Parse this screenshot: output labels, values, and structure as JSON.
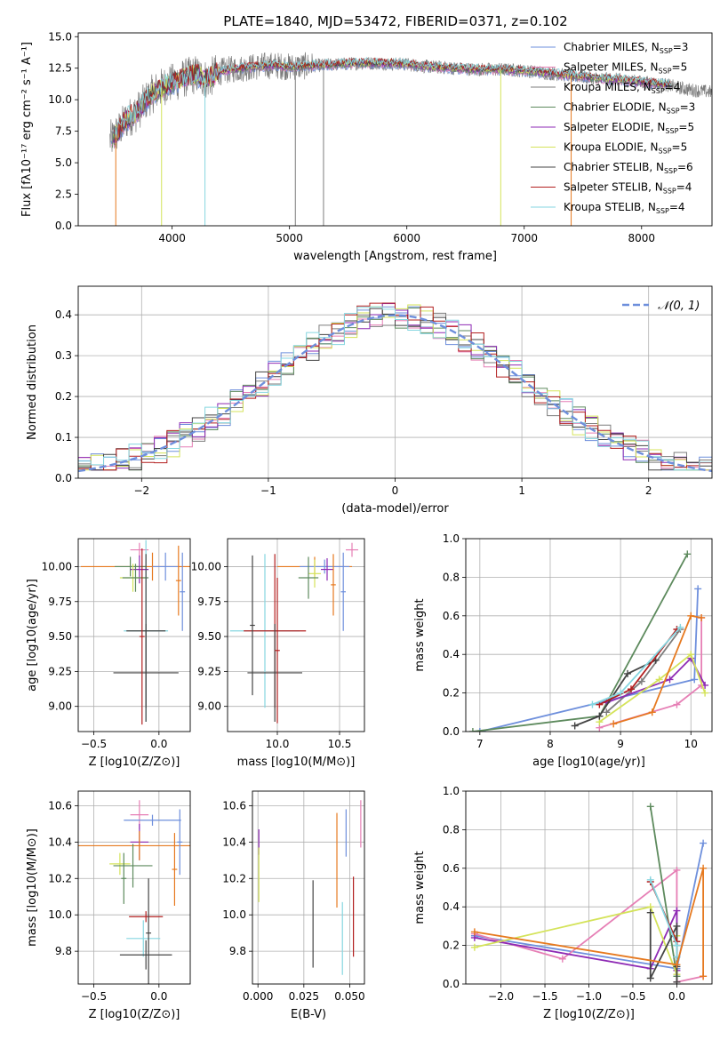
{
  "figure_title": "PLATE=1840, MJD=53472, FIBERID=0371, z=0.102",
  "legend_colors": [
    "#6e8fdc",
    "#e67fb5",
    "#7d7d7d",
    "#5d8a5d",
    "#8e2ab4",
    "#d4e35a",
    "#444444",
    "#b21f1f",
    "#86d6e0"
  ],
  "chart_data": [
    {
      "id": "spectrum",
      "type": "line",
      "title": "PLATE=1840, MJD=53472, FIBERID=0371, z=0.102",
      "xlabel": "wavelength [Angstrom, rest frame]",
      "ylabel": "Flux [fλ10⁻¹⁷ erg cm⁻² s⁻¹ A⁻¹]",
      "xlim": [
        3200,
        8600
      ],
      "ylim": [
        0,
        15.3
      ],
      "xticks": [
        4000,
        5000,
        6000,
        7000,
        8000
      ],
      "yticks": [
        0.0,
        2.5,
        5.0,
        7.5,
        10.0,
        12.5,
        15.0
      ],
      "grid": false,
      "legend_position": "top-right",
      "data_series": {
        "name": "data",
        "color": "#7d7d7d",
        "x": [
          3470,
          3500,
          3550,
          3600,
          3650,
          3700,
          3750,
          3800,
          3850,
          3900,
          3950,
          4000,
          4100,
          4200,
          4300,
          4400,
          4500,
          4600,
          4700,
          4800,
          4900,
          5000,
          5200,
          5400,
          5600,
          5800,
          6000,
          6200,
          6400,
          6600,
          6800,
          7000,
          7200,
          7400,
          7600,
          7800,
          8000,
          8200,
          8400,
          8600
        ],
        "y": [
          6.8,
          7.0,
          7.6,
          8.3,
          8.7,
          9.0,
          9.6,
          10.2,
          10.6,
          10.9,
          11.2,
          11.3,
          11.7,
          12.0,
          11.6,
          12.2,
          12.4,
          12.5,
          12.6,
          12.7,
          12.7,
          12.6,
          12.7,
          12.8,
          12.9,
          12.9,
          12.8,
          12.6,
          12.5,
          12.4,
          12.4,
          12.3,
          12.1,
          11.9,
          11.7,
          11.6,
          11.4,
          11.2,
          10.8,
          10.6
        ]
      },
      "series": [
        {
          "name": "Chabrier MILES, N_SSP=3",
          "label": "Chabrier MILES, N",
          "sub": "SSP",
          "suffix": "=3",
          "color": "#6e8fdc"
        },
        {
          "name": "Salpeter MILES, N_SSP=5",
          "label": "Salpeter MILES, N",
          "sub": "SSP",
          "suffix": "=5",
          "color": "#e67fb5"
        },
        {
          "name": "Kroupa MILES, N_SSP=4",
          "label": "Kroupa MILES, N",
          "sub": "SSP",
          "suffix": "=4",
          "color": "#7d7d7d"
        },
        {
          "name": "Chabrier ELODIE, N_SSP=3",
          "label": "Chabrier ELODIE, N",
          "sub": "SSP",
          "suffix": "=3",
          "color": "#5d8a5d"
        },
        {
          "name": "Salpeter ELODIE, N_SSP=5",
          "label": "Salpeter ELODIE, N",
          "sub": "SSP",
          "suffix": "=5",
          "color": "#8e2ab4"
        },
        {
          "name": "Kroupa ELODIE, N_SSP=5",
          "label": "Kroupa ELODIE, N",
          "sub": "SSP",
          "suffix": "=5",
          "color": "#d4e35a"
        },
        {
          "name": "Chabrier STELIB, N_SSP=6",
          "label": "Chabrier STELIB, N",
          "sub": "SSP",
          "suffix": "=6",
          "color": "#444444"
        },
        {
          "name": "Salpeter STELIB, N_SSP=4",
          "label": "Salpeter STELIB, N",
          "sub": "SSP",
          "suffix": "=4",
          "color": "#b21f1f"
        },
        {
          "name": "Kroupa STELIB, N_SSP=4",
          "label": "Kroupa STELIB, N",
          "sub": "SSP",
          "suffix": "=4",
          "color": "#86d6e0"
        }
      ]
    },
    {
      "id": "residuals",
      "type": "histogram",
      "xlabel": "(data-model)/error",
      "ylabel": "Normed distribution",
      "xlim": [
        -2.5,
        2.5
      ],
      "ylim": [
        0,
        0.47
      ],
      "xticks": [
        -2,
        -1,
        0,
        1,
        2
      ],
      "yticks": [
        0.0,
        0.1,
        0.2,
        0.3,
        0.4
      ],
      "grid": true,
      "legend_position": "top-right",
      "normal_curve": {
        "name": "𝒩(0, 1)",
        "color": "#6e8fdc",
        "style": "dashed"
      },
      "bin_edges_range": [
        -2.5,
        2.5
      ],
      "bin_count": 50
    },
    {
      "id": "age_vs_Z",
      "type": "errorbar",
      "xlabel": "Z [log10(Z/Z⊙)]",
      "ylabel": "age  [log10(age/yr)]",
      "xlim": [
        -0.62,
        0.24
      ],
      "ylim": [
        8.82,
        10.2
      ],
      "xticks": [
        -0.5,
        0.0
      ],
      "yticks": [
        9.0,
        9.25,
        9.5,
        9.75,
        10.0
      ],
      "grid": true,
      "points": [
        {
          "x": -0.05,
          "y": 10.0,
          "xerr": 0.55,
          "yerr": 0.1,
          "color": "#e6791f"
        },
        {
          "x": 0.05,
          "y": 10.0,
          "xerr": 0.1,
          "yerr": 0.1,
          "color": "#6e8fdc"
        },
        {
          "x": -0.22,
          "y": 10.0,
          "xerr": 0.12,
          "yerr": 0.07,
          "color": "#5d8a5d"
        },
        {
          "x": -0.15,
          "y": 10.12,
          "xerr": 0.07,
          "yerr": 0.05,
          "color": "#e67fb5"
        },
        {
          "x": -0.15,
          "y": 9.98,
          "xerr": 0.07,
          "yerr": 0.1,
          "color": "#8e2ab4"
        },
        {
          "x": -0.2,
          "y": 9.92,
          "xerr": 0.1,
          "yerr": 0.1,
          "color": "#d4e35a"
        },
        {
          "x": -0.18,
          "y": 9.92,
          "xerr": 0.1,
          "yerr": 0.1,
          "color": "#5d8a5d"
        },
        {
          "x": 0.15,
          "y": 9.9,
          "xerr": 0.02,
          "yerr": 0.25,
          "color": "#e6791f"
        },
        {
          "x": 0.18,
          "y": 9.82,
          "xerr": 0.02,
          "yerr": 0.28,
          "color": "#6e8fdc"
        },
        {
          "x": -0.1,
          "y": 9.54,
          "xerr": 0.17,
          "yerr": 0.65,
          "color": "#86d6e0"
        },
        {
          "x": -0.1,
          "y": 9.54,
          "xerr": 0.15,
          "yerr": 0.55,
          "color": "#444444"
        },
        {
          "x": -0.1,
          "y": 9.24,
          "xerr": 0.25,
          "yerr": 0.35,
          "color": "#444444"
        },
        {
          "x": -0.13,
          "y": 9.5,
          "xerr": 0.02,
          "yerr": 0.63,
          "color": "#b21f1f"
        }
      ]
    },
    {
      "id": "age_vs_mass",
      "type": "errorbar",
      "xlabel": "mass [log10(M/M⊙)]",
      "ylabel": "",
      "xlim": [
        9.6,
        10.7
      ],
      "ylim": [
        8.82,
        10.2
      ],
      "xticks": [
        10.0,
        10.5
      ],
      "yticks": [
        9.0,
        9.25,
        9.5,
        9.75,
        10.0
      ],
      "grid": true,
      "points": [
        {
          "x": 10.3,
          "y": 10.0,
          "xerr": 0.3,
          "yerr": 0.07,
          "color": "#e6791f"
        },
        {
          "x": 10.38,
          "y": 10.0,
          "xerr": 0.2,
          "yerr": 0.05,
          "color": "#6e8fdc"
        },
        {
          "x": 10.6,
          "y": 10.12,
          "xerr": 0.05,
          "yerr": 0.05,
          "color": "#e67fb5"
        },
        {
          "x": 10.4,
          "y": 9.98,
          "xerr": 0.05,
          "yerr": 0.08,
          "color": "#8e2ab4"
        },
        {
          "x": 10.3,
          "y": 9.95,
          "xerr": 0.05,
          "yerr": 0.1,
          "color": "#d4e35a"
        },
        {
          "x": 10.25,
          "y": 9.92,
          "xerr": 0.08,
          "yerr": 0.15,
          "color": "#5d8a5d"
        },
        {
          "x": 10.45,
          "y": 9.87,
          "xerr": 0.02,
          "yerr": 0.22,
          "color": "#e6791f"
        },
        {
          "x": 10.53,
          "y": 9.82,
          "xerr": 0.02,
          "yerr": 0.28,
          "color": "#6e8fdc"
        },
        {
          "x": 9.9,
          "y": 9.54,
          "xerr": 0.28,
          "yerr": 0.55,
          "color": "#86d6e0"
        },
        {
          "x": 9.98,
          "y": 9.54,
          "xerr": 0.25,
          "yerr": 0.55,
          "color": "#b21f1f"
        },
        {
          "x": 9.98,
          "y": 9.24,
          "xerr": 0.22,
          "yerr": 0.35,
          "color": "#444444"
        },
        {
          "x": 9.8,
          "y": 9.58,
          "xerr": 0.02,
          "yerr": 0.5,
          "color": "#444444"
        },
        {
          "x": 10.0,
          "y": 9.4,
          "xerr": 0.02,
          "yerr": 0.52,
          "color": "#b21f1f"
        }
      ]
    },
    {
      "id": "weight_vs_age",
      "type": "line",
      "xlabel": "age  [log10(age/yr)]",
      "ylabel": "mass weight",
      "xlim": [
        6.8,
        10.3
      ],
      "ylim": [
        0,
        1.0
      ],
      "xticks": [
        7,
        8,
        9,
        10
      ],
      "yticks": [
        0.0,
        0.2,
        0.4,
        0.6,
        0.8,
        1.0
      ],
      "grid": true,
      "series": [
        {
          "color": "#6e8fdc",
          "x": [
            7.0,
            10.05,
            10.1
          ],
          "y": [
            0.0,
            0.27,
            0.74
          ]
        },
        {
          "color": "#e67fb5",
          "x": [
            8.7,
            9.8,
            10.15,
            10.15
          ],
          "y": [
            0.02,
            0.14,
            0.24,
            0.59
          ]
        },
        {
          "color": "#7d7d7d",
          "x": [
            8.8,
            9.3,
            9.85
          ],
          "y": [
            0.1,
            0.26,
            0.53
          ]
        },
        {
          "color": "#5d8a5d",
          "x": [
            6.9,
            8.7,
            9.95
          ],
          "y": [
            0.0,
            0.08,
            0.92
          ]
        },
        {
          "color": "#8e2ab4",
          "x": [
            8.8,
            9.7,
            10.0,
            10.2
          ],
          "y": [
            0.15,
            0.27,
            0.38,
            0.24
          ]
        },
        {
          "color": "#d4e35a",
          "x": [
            8.7,
            9.55,
            10.0,
            10.2
          ],
          "y": [
            0.05,
            0.27,
            0.4,
            0.2
          ]
        },
        {
          "color": "#444444",
          "x": [
            8.35,
            8.7,
            9.1,
            9.5
          ],
          "y": [
            0.03,
            0.08,
            0.3,
            0.37
          ]
        },
        {
          "color": "#b21f1f",
          "x": [
            8.7,
            9.15,
            9.8
          ],
          "y": [
            0.14,
            0.22,
            0.53
          ]
        },
        {
          "color": "#86d6e0",
          "x": [
            8.6,
            9.0,
            9.85
          ],
          "y": [
            0.14,
            0.2,
            0.54
          ]
        },
        {
          "color": "#e6791f",
          "x": [
            8.9,
            9.45,
            10.0,
            10.15
          ],
          "y": [
            0.04,
            0.1,
            0.6,
            0.59
          ]
        }
      ]
    },
    {
      "id": "mass_vs_Z",
      "type": "errorbar",
      "xlabel": "Z [log10(Z/Z⊙)]",
      "ylabel": "mass [log10(M/M⊙)]",
      "xlim": [
        -0.62,
        0.24
      ],
      "ylim": [
        9.62,
        10.68
      ],
      "xticks": [
        -0.5,
        0.0
      ],
      "yticks": [
        9.8,
        10.0,
        10.2,
        10.4,
        10.6
      ],
      "grid": true,
      "points": [
        {
          "x": -0.15,
          "y": 10.55,
          "xerr": 0.07,
          "yerr": 0.08,
          "color": "#e67fb5"
        },
        {
          "x": -0.05,
          "y": 10.52,
          "xerr": 0.22,
          "yerr": 0.03,
          "color": "#6e8fdc"
        },
        {
          "x": -0.15,
          "y": 10.4,
          "xerr": 0.07,
          "yerr": 0.1,
          "color": "#8e2ab4"
        },
        {
          "x": -0.15,
          "y": 10.38,
          "xerr": 0.55,
          "yerr": 0.08,
          "color": "#e6791f"
        },
        {
          "x": -0.3,
          "y": 10.28,
          "xerr": 0.08,
          "yerr": 0.06,
          "color": "#d4e35a"
        },
        {
          "x": -0.2,
          "y": 10.27,
          "xerr": 0.15,
          "yerr": 0.12,
          "color": "#5d8a5d"
        },
        {
          "x": -0.27,
          "y": 10.2,
          "xerr": 0.02,
          "yerr": 0.14,
          "color": "#5d8a5d"
        },
        {
          "x": 0.12,
          "y": 10.25,
          "xerr": 0.02,
          "yerr": 0.2,
          "color": "#e6791f"
        },
        {
          "x": 0.16,
          "y": 10.4,
          "xerr": 0.02,
          "yerr": 0.18,
          "color": "#6e8fdc"
        },
        {
          "x": -0.1,
          "y": 9.99,
          "xerr": 0.13,
          "yerr": 0.03,
          "color": "#b21f1f"
        },
        {
          "x": -0.12,
          "y": 9.87,
          "xerr": 0.13,
          "yerr": 0.1,
          "color": "#86d6e0"
        },
        {
          "x": -0.1,
          "y": 9.78,
          "xerr": 0.2,
          "yerr": 0.08,
          "color": "#444444"
        },
        {
          "x": -0.08,
          "y": 9.9,
          "xerr": 0.02,
          "yerr": 0.3,
          "color": "#444444"
        }
      ]
    },
    {
      "id": "mass_vs_EBV",
      "type": "errorbar",
      "xlabel": "E(B-V)",
      "ylabel": "",
      "xlim": [
        -0.003,
        0.058
      ],
      "ylim": [
        9.62,
        10.68
      ],
      "xticks": [
        0.0,
        0.025,
        0.05
      ],
      "xticklabels": [
        "0.000",
        "0.025",
        "0.050"
      ],
      "yticks": [
        9.8,
        10.0,
        10.2,
        10.4,
        10.6
      ],
      "grid": true,
      "points": [
        {
          "x": 0.0005,
          "y": 10.4,
          "xerr": 0,
          "yerr": 0.07,
          "color": "#8e2ab4"
        },
        {
          "x": 0.0005,
          "y": 10.22,
          "xerr": 0,
          "yerr": 0.15,
          "color": "#d4e35a"
        },
        {
          "x": 0.03,
          "y": 9.95,
          "xerr": 0,
          "yerr": 0.24,
          "color": "#444444"
        },
        {
          "x": 0.043,
          "y": 10.3,
          "xerr": 0,
          "yerr": 0.26,
          "color": "#e6791f"
        },
        {
          "x": 0.046,
          "y": 9.87,
          "xerr": 0,
          "yerr": 0.2,
          "color": "#86d6e0"
        },
        {
          "x": 0.048,
          "y": 10.45,
          "xerr": 0,
          "yerr": 0.13,
          "color": "#6e8fdc"
        },
        {
          "x": 0.052,
          "y": 9.99,
          "xerr": 0,
          "yerr": 0.22,
          "color": "#b21f1f"
        },
        {
          "x": 0.056,
          "y": 10.5,
          "xerr": 0,
          "yerr": 0.13,
          "color": "#e67fb5"
        }
      ]
    },
    {
      "id": "weight_vs_Z",
      "type": "line",
      "xlabel": "Z [log10(Z/Z⊙)]",
      "ylabel": "mass weight",
      "xlim": [
        -2.4,
        0.4
      ],
      "ylim": [
        0,
        1.0
      ],
      "xticks": [
        -2.0,
        -1.5,
        -1.0,
        -0.5,
        0.0
      ],
      "yticks": [
        0.0,
        0.2,
        0.4,
        0.6,
        0.8,
        1.0
      ],
      "grid": true,
      "series": [
        {
          "color": "#6e8fdc",
          "x": [
            -2.3,
            0.0,
            0.3
          ],
          "y": [
            0.25,
            0.08,
            0.73
          ]
        },
        {
          "color": "#e67fb5",
          "x": [
            -2.3,
            -1.3,
            0.0,
            0.0,
            0.3
          ],
          "y": [
            0.26,
            0.13,
            0.59,
            0.01,
            0.04
          ]
        },
        {
          "color": "#5d8a5d",
          "x": [
            -0.3,
            0.0,
            0.0
          ],
          "y": [
            0.92,
            0.04,
            0.2
          ]
        },
        {
          "color": "#8e2ab4",
          "x": [
            -2.3,
            -0.3,
            0.0,
            0.0
          ],
          "y": [
            0.24,
            0.08,
            0.38,
            0.07
          ]
        },
        {
          "color": "#d4e35a",
          "x": [
            -2.3,
            -0.3,
            0.0,
            0.0
          ],
          "y": [
            0.19,
            0.4,
            0.05,
            0.25
          ]
        },
        {
          "color": "#444444",
          "x": [
            -0.3,
            -0.3,
            0.0,
            0.0,
            0.0
          ],
          "y": [
            0.37,
            0.03,
            0.3,
            0.09,
            0.01
          ]
        },
        {
          "color": "#b21f1f",
          "x": [
            -0.3,
            0.0,
            0.0
          ],
          "y": [
            0.53,
            0.22,
            0.14
          ]
        },
        {
          "color": "#86d6e0",
          "x": [
            -0.3,
            0.0,
            0.0
          ],
          "y": [
            0.54,
            0.2,
            0.14
          ]
        },
        {
          "color": "#e6791f",
          "x": [
            -2.3,
            0.0,
            0.3,
            0.3
          ],
          "y": [
            0.27,
            0.1,
            0.6,
            0.04
          ]
        }
      ]
    }
  ]
}
